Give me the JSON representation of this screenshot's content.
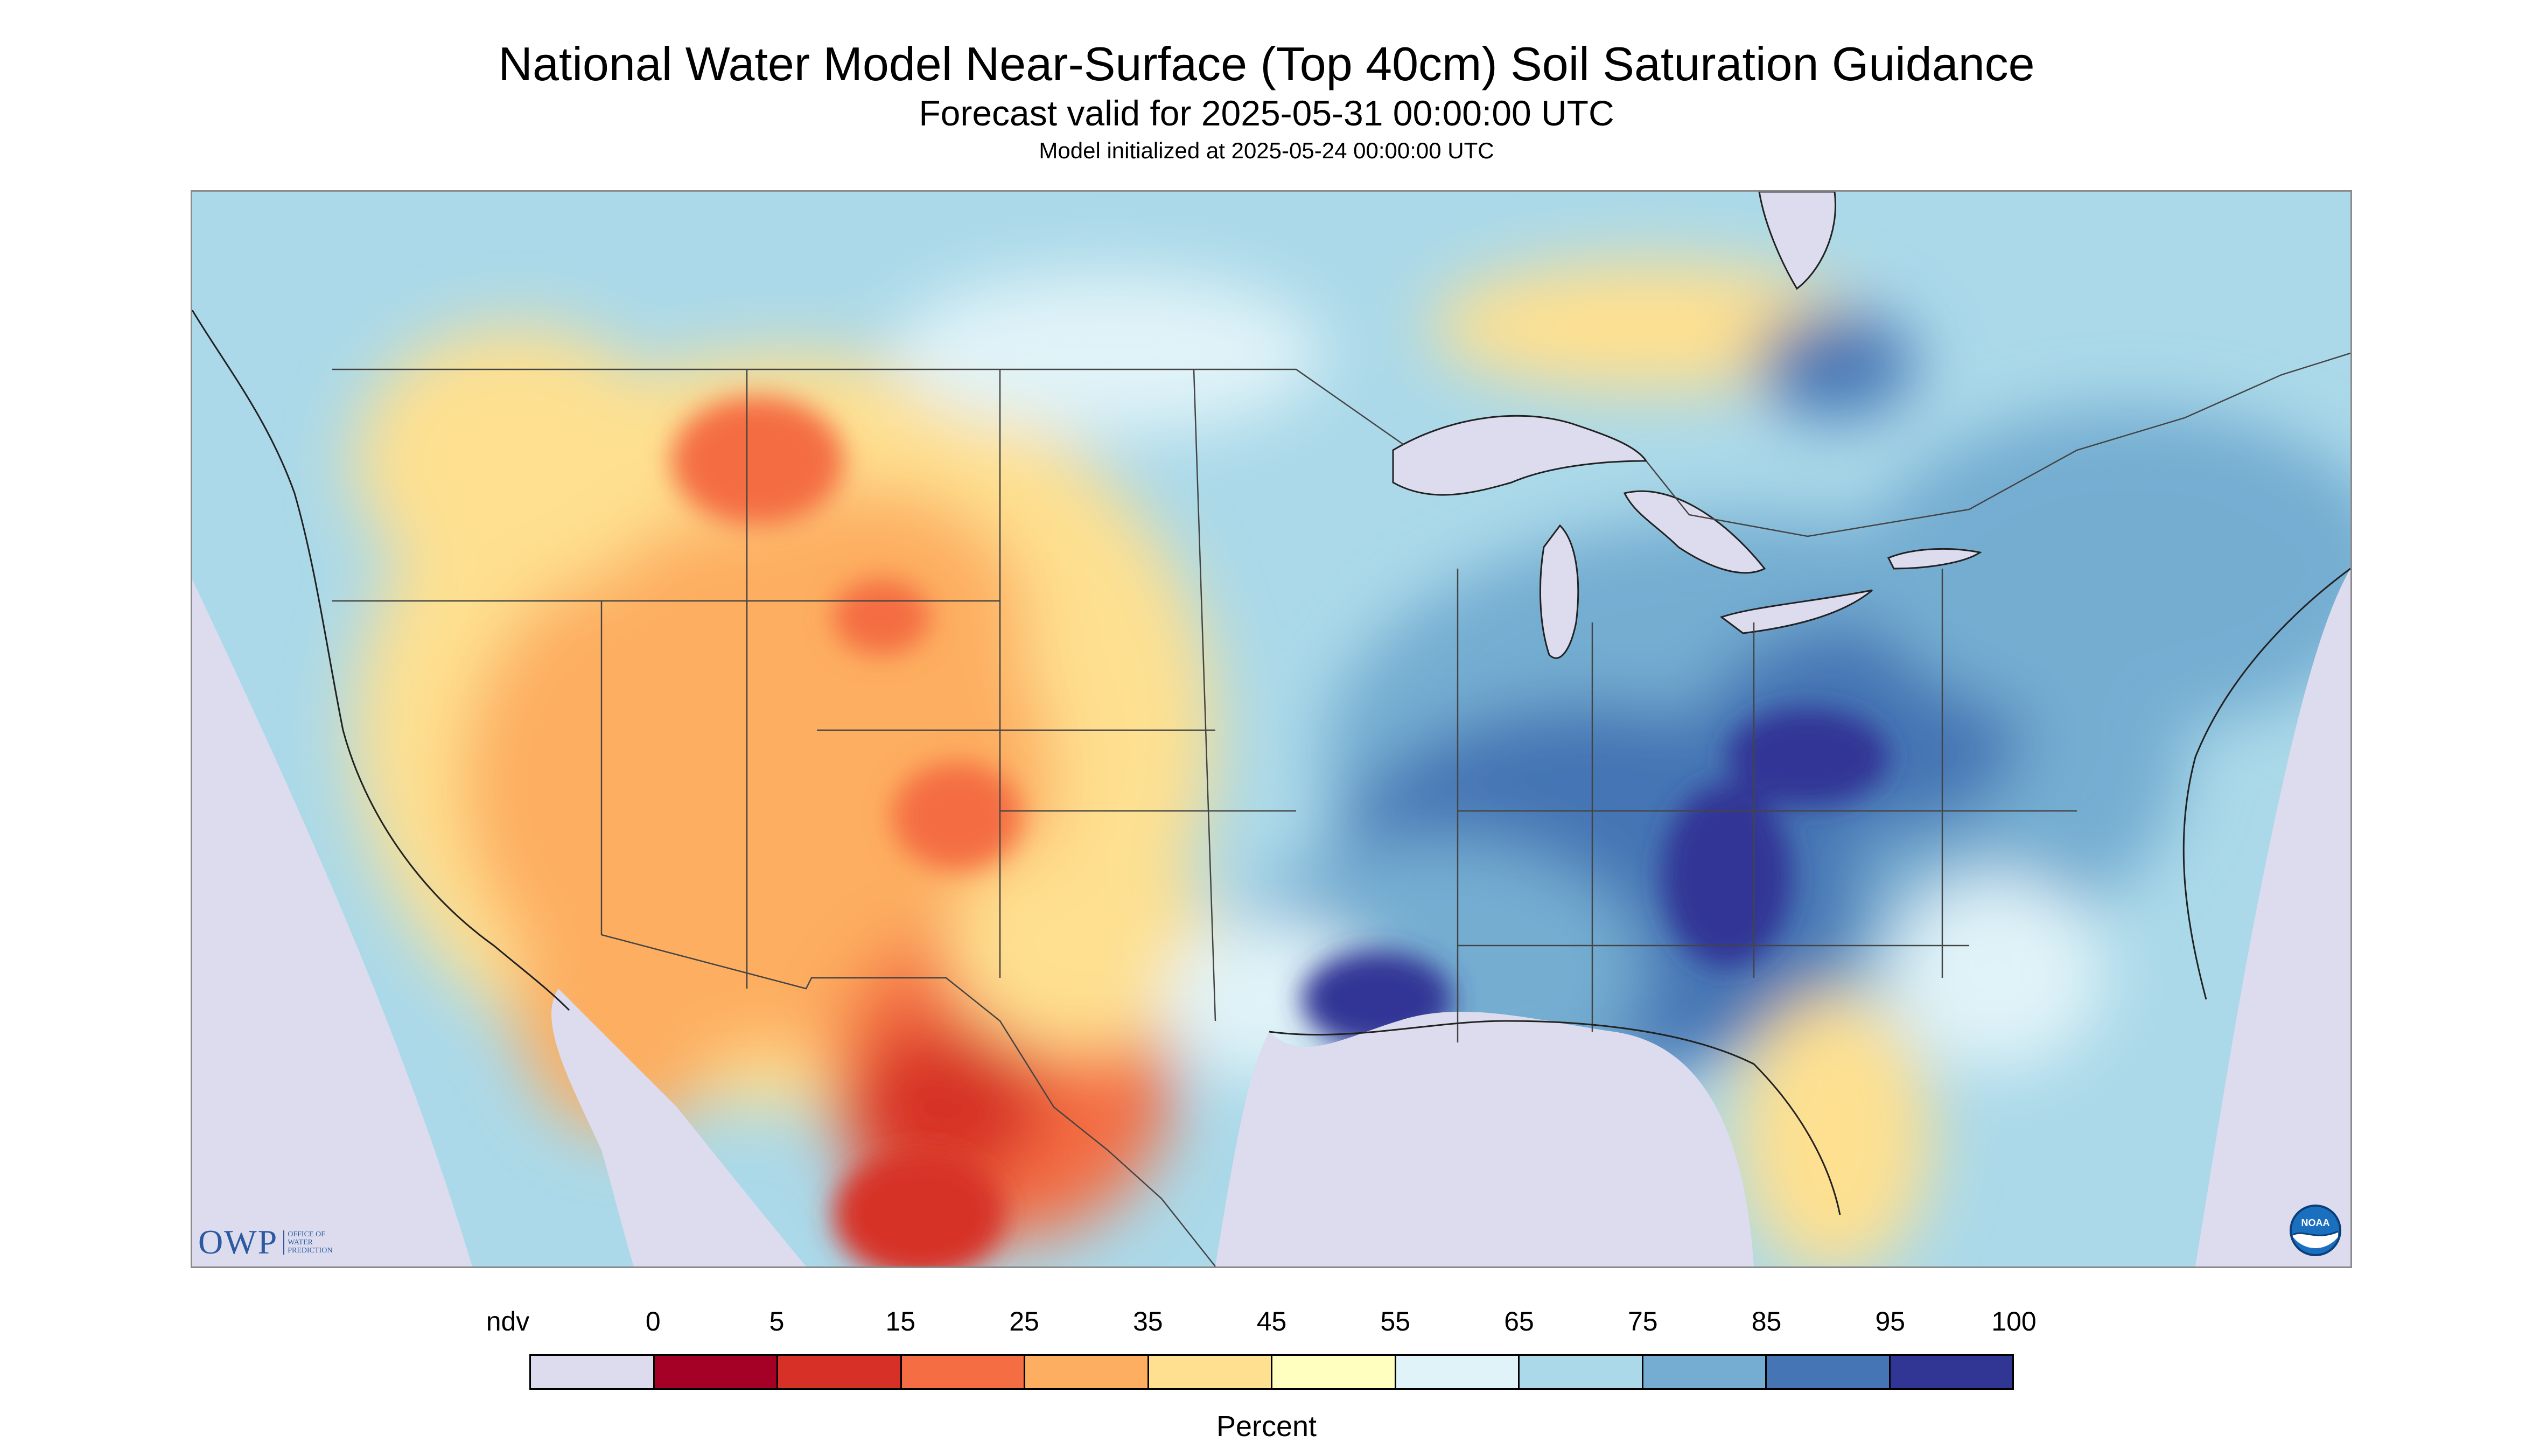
{
  "header": {
    "title": "National Water Model Near-Surface (Top 40cm) Soil Saturation Guidance",
    "subtitle": "Forecast valid for 2025-05-31 00:00:00 UTC",
    "init": "Model initialized at 2025-05-24 00:00:00 UTC"
  },
  "logos": {
    "owp_text": "OWP",
    "owp_sub": [
      "OFFICE OF",
      "WATER",
      "PREDICTION"
    ],
    "noaa_text": "NOAA"
  },
  "legend": {
    "ticks": [
      "ndv",
      "0",
      "5",
      "15",
      "25",
      "35",
      "45",
      "55",
      "65",
      "75",
      "85",
      "95",
      "100"
    ],
    "colors": [
      "#dcdcee",
      "#a50026",
      "#d73027",
      "#f46d43",
      "#fdae61",
      "#fee090",
      "#ffffbf",
      "#e0f3f8",
      "#abd9e9",
      "#74add1",
      "#4575b4",
      "#313695"
    ],
    "unit": "Percent"
  },
  "map": {
    "region": "contiguous-us-with-southern-canada-northern-mexico",
    "nodata_color": "#dcdcee",
    "water_color": "#dcdcee",
    "border_color": "#333333"
  }
}
